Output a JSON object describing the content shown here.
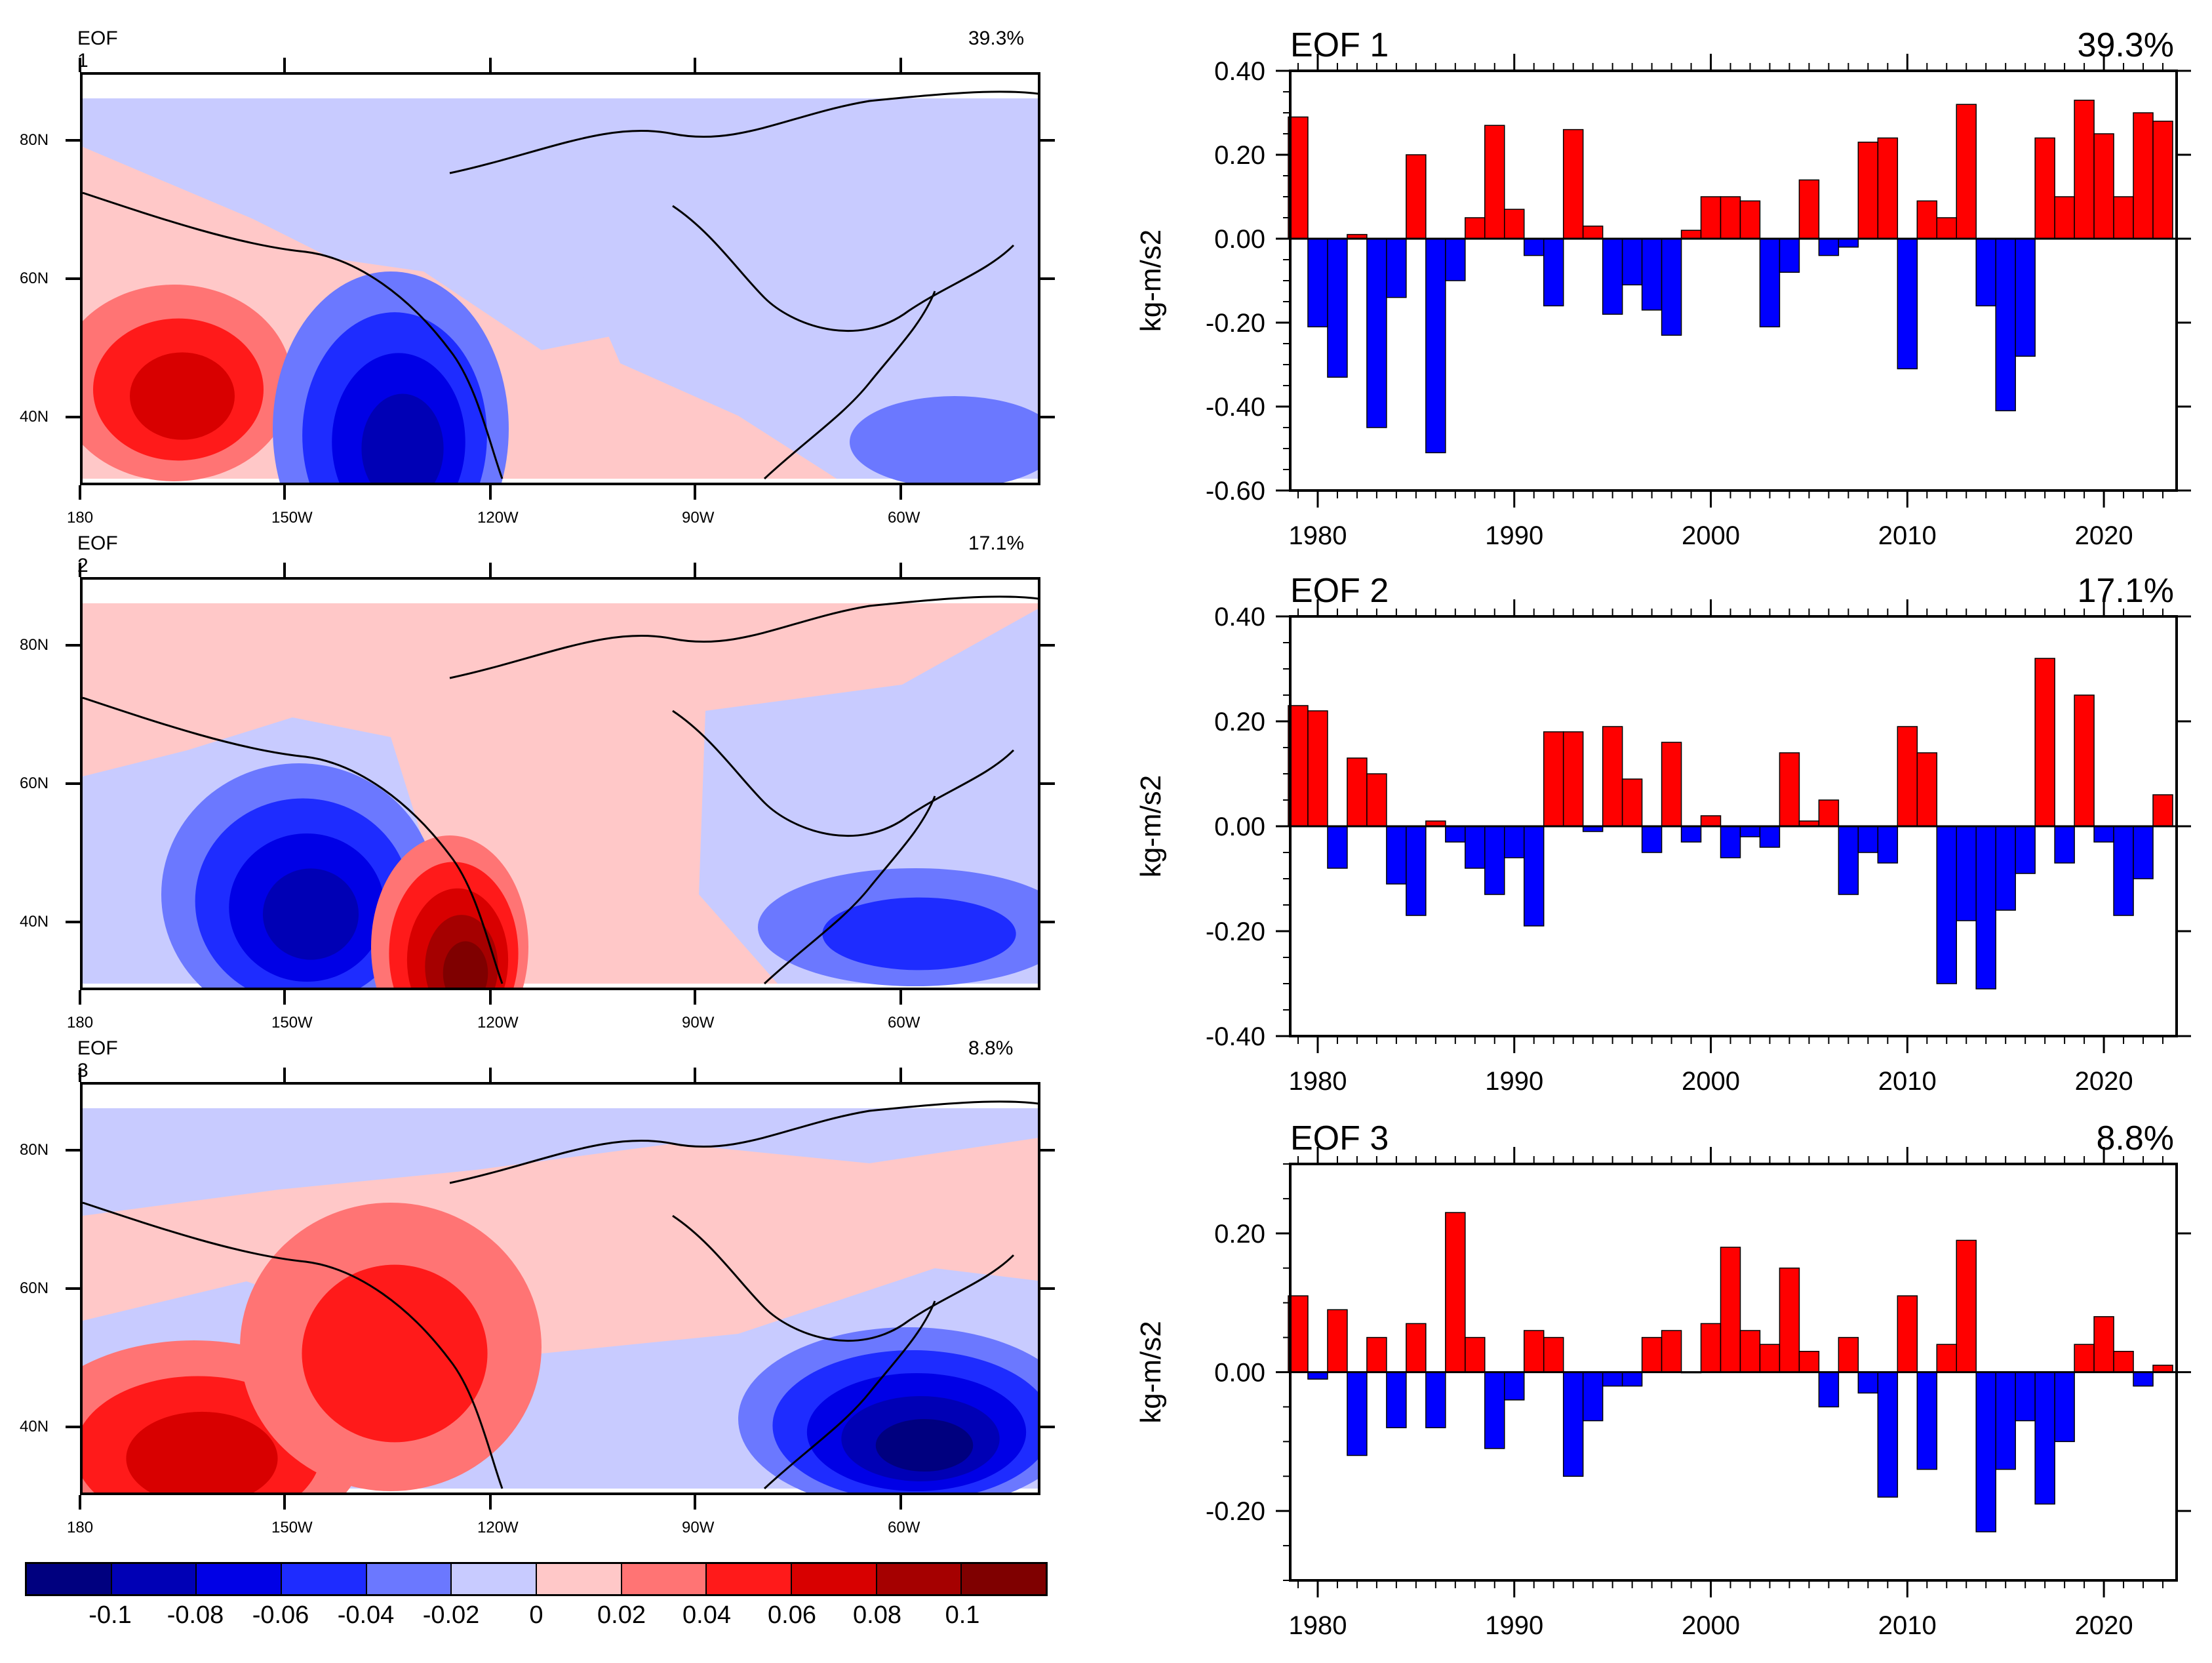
{
  "colors": {
    "ramp": [
      "#00007f",
      "#0000b5",
      "#0000e6",
      "#1e2cff",
      "#6b78ff",
      "#c8cbff",
      "#ffc8c8",
      "#ff7474",
      "#ff1a1a",
      "#d80000",
      "#a50000",
      "#7f0000"
    ],
    "positive_bar": "#ff0000",
    "negative_bar": "#0000ff"
  },
  "maps": [
    {
      "title": "EOF 1",
      "pct": "39.3%"
    },
    {
      "title": "EOF 2",
      "pct": "17.1%"
    },
    {
      "title": "EOF 3",
      "pct": "8.8%"
    }
  ],
  "map_axes": {
    "lat_labels": [
      "80N",
      "60N",
      "40N"
    ],
    "lon_labels": [
      "180",
      "150W",
      "120W",
      "90W",
      "60W"
    ]
  },
  "colorbar_labels": [
    "-0.1",
    "-0.08",
    "-0.06",
    "-0.04",
    "-0.02",
    "0",
    "0.02",
    "0.04",
    "0.06",
    "0.08",
    "0.1"
  ],
  "chart_data": [
    {
      "type": "bar",
      "title": "EOF 1",
      "pct": "39.3%",
      "ylabel": "kg-m/s2",
      "ylim": [
        -0.6,
        0.4
      ],
      "yticks": [
        "0.40",
        "0.20",
        "0.00",
        "-0.20",
        "-0.40",
        "-0.60"
      ],
      "ytick_values": [
        0.4,
        0.2,
        0.0,
        -0.2,
        -0.4,
        -0.6
      ],
      "xticks": [
        "1980",
        "1990",
        "2000",
        "2010",
        "2020"
      ],
      "x": [
        1979,
        1980,
        1981,
        1982,
        1983,
        1984,
        1985,
        1986,
        1987,
        1988,
        1989,
        1990,
        1991,
        1992,
        1993,
        1994,
        1995,
        1996,
        1997,
        1998,
        1999,
        2000,
        2001,
        2002,
        2003,
        2004,
        2005,
        2006,
        2007,
        2008,
        2009,
        2010,
        2011,
        2012,
        2013,
        2014,
        2015,
        2016,
        2017,
        2018,
        2019,
        2020,
        2021,
        2022,
        2023
      ],
      "values": [
        0.29,
        -0.21,
        -0.33,
        0.01,
        -0.45,
        -0.14,
        0.2,
        -0.51,
        -0.1,
        0.05,
        0.27,
        0.07,
        -0.04,
        -0.16,
        0.26,
        0.03,
        -0.18,
        -0.11,
        -0.17,
        -0.23,
        0.02,
        0.1,
        0.1,
        0.09,
        -0.21,
        -0.08,
        0.14,
        -0.04,
        -0.02,
        0.23,
        0.24,
        -0.31,
        0.09,
        0.05,
        0.32,
        -0.16,
        -0.41,
        -0.28,
        0.24,
        0.1,
        0.33,
        0.25,
        0.1,
        0.3,
        0.28
      ]
    },
    {
      "type": "bar",
      "title": "EOF 2",
      "pct": "17.1%",
      "ylabel": "kg-m/s2",
      "ylim": [
        -0.4,
        0.4
      ],
      "yticks": [
        "0.40",
        "0.20",
        "0.00",
        "-0.20",
        "-0.40"
      ],
      "ytick_values": [
        0.4,
        0.2,
        0.0,
        -0.2,
        -0.4
      ],
      "xticks": [
        "1980",
        "1990",
        "2000",
        "2010",
        "2020"
      ],
      "x": [
        1979,
        1980,
        1981,
        1982,
        1983,
        1984,
        1985,
        1986,
        1987,
        1988,
        1989,
        1990,
        1991,
        1992,
        1993,
        1994,
        1995,
        1996,
        1997,
        1998,
        1999,
        2000,
        2001,
        2002,
        2003,
        2004,
        2005,
        2006,
        2007,
        2008,
        2009,
        2010,
        2011,
        2012,
        2013,
        2014,
        2015,
        2016,
        2017,
        2018,
        2019,
        2020,
        2021,
        2022,
        2023
      ],
      "values": [
        0.23,
        0.22,
        -0.08,
        0.13,
        0.1,
        -0.11,
        -0.17,
        0.01,
        -0.03,
        -0.08,
        -0.13,
        -0.06,
        -0.19,
        0.18,
        0.18,
        -0.01,
        0.19,
        0.09,
        -0.05,
        0.16,
        -0.03,
        0.02,
        -0.06,
        -0.02,
        -0.04,
        0.14,
        0.01,
        0.05,
        -0.13,
        -0.05,
        -0.07,
        0.19,
        0.14,
        -0.3,
        -0.18,
        -0.31,
        -0.16,
        -0.09,
        0.32,
        -0.07,
        0.25,
        -0.03,
        -0.17,
        -0.1,
        0.06
      ]
    },
    {
      "type": "bar",
      "title": "EOF 3",
      "pct": "8.8%",
      "ylabel": "kg-m/s2",
      "ylim": [
        -0.3,
        0.3
      ],
      "yticks": [
        "0.20",
        "0.00",
        "-0.20"
      ],
      "ytick_values": [
        0.2,
        0.0,
        -0.2
      ],
      "xticks": [
        "1980",
        "1990",
        "2000",
        "2010",
        "2020"
      ],
      "x": [
        1979,
        1980,
        1981,
        1982,
        1983,
        1984,
        1985,
        1986,
        1987,
        1988,
        1989,
        1990,
        1991,
        1992,
        1993,
        1994,
        1995,
        1996,
        1997,
        1998,
        1999,
        2000,
        2001,
        2002,
        2003,
        2004,
        2005,
        2006,
        2007,
        2008,
        2009,
        2010,
        2011,
        2012,
        2013,
        2014,
        2015,
        2016,
        2017,
        2018,
        2019,
        2020,
        2021,
        2022,
        2023
      ],
      "values": [
        0.11,
        -0.01,
        0.09,
        -0.12,
        0.05,
        -0.08,
        0.07,
        -0.08,
        0.23,
        0.05,
        -0.11,
        -0.04,
        0.06,
        0.05,
        -0.15,
        -0.07,
        -0.02,
        -0.02,
        0.05,
        0.06,
        0.0,
        0.07,
        0.18,
        0.06,
        0.04,
        0.15,
        0.03,
        -0.05,
        0.05,
        -0.03,
        -0.18,
        0.11,
        -0.14,
        0.04,
        0.19,
        -0.23,
        -0.14,
        -0.07,
        -0.19,
        -0.1,
        0.04,
        0.08,
        0.03,
        -0.02,
        0.01
      ]
    }
  ]
}
